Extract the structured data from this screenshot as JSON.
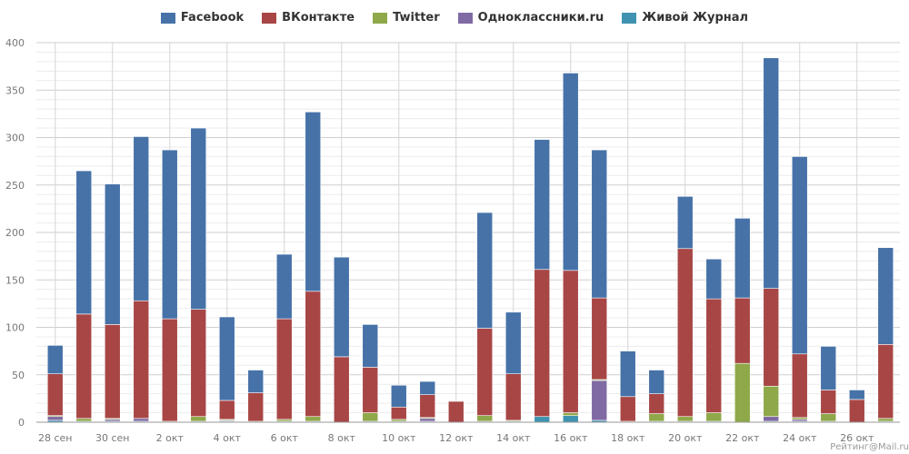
{
  "chart_data": {
    "type": "bar",
    "stacked": true,
    "title": "",
    "xlabel": "",
    "ylabel": "",
    "ylim": [
      0,
      400
    ],
    "yticks": [
      0,
      50,
      100,
      150,
      200,
      250,
      300,
      350,
      400
    ],
    "grid": true,
    "legend_position": "top-center",
    "categories": [
      "28 сен",
      "29 сен",
      "30 сен",
      "1 окт",
      "2 окт",
      "3 окт",
      "4 окт",
      "5 окт",
      "6 окт",
      "7 окт",
      "8 окт",
      "9 окт",
      "10 окт",
      "11 окт",
      "12 окт",
      "13 окт",
      "14 окт",
      "15 окт",
      "16 окт",
      "17 окт",
      "18 окт",
      "19 окт",
      "20 окт",
      "21 окт",
      "22 окт",
      "23 окт",
      "24 окт",
      "25 окт",
      "26 окт",
      "27 окт"
    ],
    "x_tick_labels": [
      "28 сен",
      "30 сен",
      "2 окт",
      "4 окт",
      "6 окт",
      "8 окт",
      "10 окт",
      "12 окт",
      "14 окт",
      "16 окт",
      "18 окт",
      "20 окт",
      "22 окт",
      "24 окт",
      "26 окт"
    ],
    "series": [
      {
        "name": "Живой Журнал",
        "color": "#3f93b0",
        "values": [
          2,
          1,
          1,
          1,
          0,
          1,
          1,
          0,
          1,
          1,
          0,
          1,
          1,
          1,
          0,
          1,
          1,
          6,
          7,
          2,
          0,
          1,
          1,
          1,
          0,
          1,
          1,
          1,
          0,
          1
        ]
      },
      {
        "name": "Одноклассники.ru",
        "color": "#7f6aa3",
        "values": [
          4,
          0,
          2,
          3,
          0,
          0,
          1,
          0,
          0,
          0,
          0,
          0,
          0,
          3,
          0,
          0,
          0,
          0,
          0,
          42,
          0,
          0,
          0,
          0,
          0,
          5,
          2,
          0,
          0,
          0
        ]
      },
      {
        "name": "Twitter",
        "color": "#8fa84a",
        "values": [
          1,
          3,
          1,
          0,
          1,
          5,
          1,
          1,
          2,
          5,
          0,
          9,
          2,
          1,
          0,
          6,
          1,
          0,
          3,
          1,
          1,
          8,
          5,
          9,
          62,
          32,
          2,
          8,
          0,
          3
        ]
      },
      {
        "name": "ВКонтакте",
        "color": "#a84646",
        "values": [
          44,
          110,
          99,
          124,
          108,
          113,
          20,
          30,
          106,
          132,
          69,
          48,
          13,
          24,
          22,
          92,
          49,
          155,
          150,
          86,
          26,
          21,
          177,
          120,
          69,
          103,
          67,
          25,
          24,
          78
        ]
      },
      {
        "name": "Facebook",
        "color": "#4672a8",
        "values": [
          30,
          151,
          148,
          173,
          178,
          191,
          88,
          24,
          68,
          189,
          105,
          45,
          23,
          14,
          0,
          122,
          65,
          137,
          208,
          156,
          48,
          25,
          55,
          42,
          84,
          243,
          208,
          46,
          10,
          102
        ]
      }
    ]
  },
  "legend": [
    {
      "label": "Facebook",
      "color": "#4672a8"
    },
    {
      "label": "ВКонтакте",
      "color": "#a84646"
    },
    {
      "label": "Twitter",
      "color": "#8fa84a"
    },
    {
      "label": "Одноклассники.ru",
      "color": "#7f6aa3"
    },
    {
      "label": "Живой Журнал",
      "color": "#3f93b0"
    }
  ],
  "watermark": "Рейтинг@Mail.ru"
}
